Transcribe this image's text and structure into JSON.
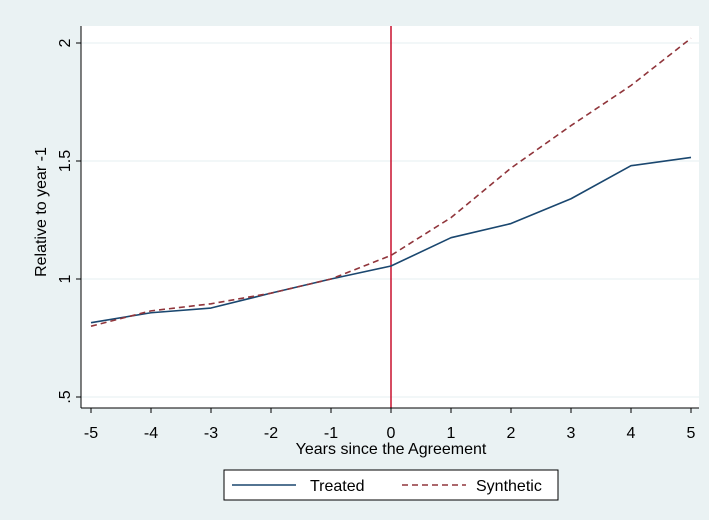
{
  "colors": {
    "background": "#eaf2f3",
    "plot_area": "#ffffff",
    "grid": "#eaf2f3",
    "treated": "#1a476f",
    "synthetic": "#90353b",
    "reference_line": "#c8102e",
    "axis": "#000000"
  },
  "chart_data": {
    "type": "line",
    "title": "",
    "xlabel": "Years since the Agreement",
    "ylabel": "Relative to year -1",
    "xlim": [
      -5,
      5
    ],
    "ylim": [
      0.5,
      2
    ],
    "grid": true,
    "x": [
      -5,
      -4,
      -3,
      -2,
      -1,
      0,
      1,
      2,
      3,
      4,
      5
    ],
    "x_ticks": [
      {
        "value": -5,
        "label": "-5"
      },
      {
        "value": -4,
        "label": "-4"
      },
      {
        "value": -3,
        "label": "-3"
      },
      {
        "value": -2,
        "label": "-2"
      },
      {
        "value": -1,
        "label": "-1"
      },
      {
        "value": 0,
        "label": "0"
      },
      {
        "value": 1,
        "label": "1"
      },
      {
        "value": 2,
        "label": "2"
      },
      {
        "value": 3,
        "label": "3"
      },
      {
        "value": 4,
        "label": "4"
      },
      {
        "value": 5,
        "label": "5"
      }
    ],
    "y_ticks": [
      {
        "value": 0.5,
        "label": ".5"
      },
      {
        "value": 1,
        "label": "1"
      },
      {
        "value": 1.5,
        "label": "1.5"
      },
      {
        "value": 2,
        "label": "2"
      }
    ],
    "series": [
      {
        "name": "Treated",
        "style": "solid",
        "color": "#1a476f",
        "values": [
          0.815,
          0.857,
          0.877,
          0.94,
          1.0,
          1.055,
          1.175,
          1.235,
          1.34,
          1.48,
          1.515
        ]
      },
      {
        "name": "Synthetic",
        "style": "dashed",
        "color": "#90353b",
        "values": [
          0.8,
          0.865,
          0.895,
          0.94,
          1.0,
          1.1,
          1.26,
          1.47,
          1.65,
          1.82,
          2.02
        ]
      }
    ],
    "reference_lines": [
      {
        "axis": "x",
        "value": 0,
        "color": "#c8102e"
      }
    ],
    "legend": {
      "position": "bottom"
    }
  }
}
